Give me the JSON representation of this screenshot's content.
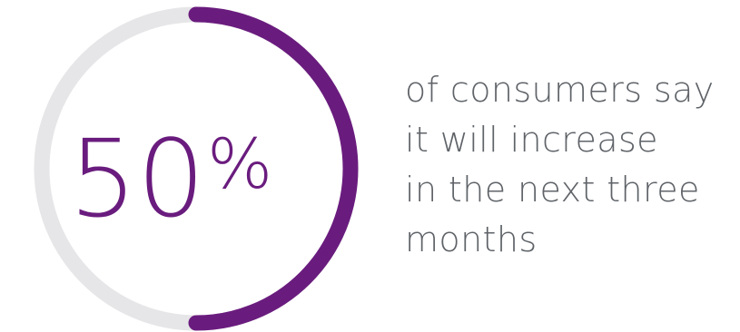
{
  "chart_data": {
    "type": "pie",
    "title": "",
    "values": [
      50,
      50
    ],
    "value_percent": 50,
    "display_number": "50",
    "display_unit": "%",
    "colors": {
      "progress": "#6a1c7e",
      "track": "#e6e6e8",
      "number_text": "#6a1c7e"
    }
  },
  "caption": {
    "lines": [
      "of consumers say",
      "it will increase",
      "in the next three",
      "months"
    ],
    "color": "#5f6368"
  }
}
